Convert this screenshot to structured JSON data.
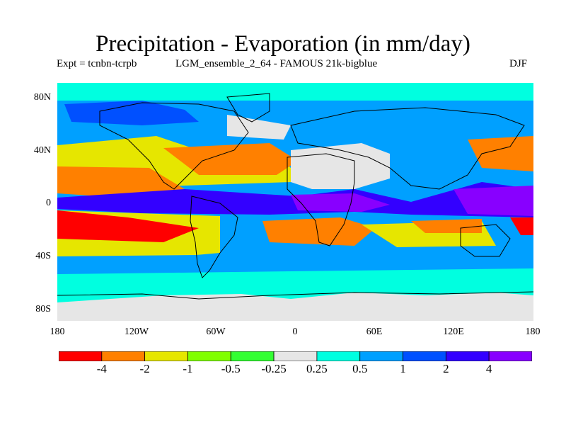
{
  "title": "Precipitation - Evaporation (in mm/day)",
  "expt_label": "Expt = tcnbn-tcrpb",
  "model_label": "LGM_ensemble_2_64 - FAMOUS 21k-bigblue",
  "season": "DJF",
  "lat_ticks": [
    "80N",
    "40N",
    "0",
    "40S",
    "80S"
  ],
  "lon_ticks": [
    "180",
    "120W",
    "60W",
    "0",
    "60E",
    "120E",
    "180"
  ],
  "colorbar": {
    "colors": [
      "#ff0000",
      "#ff8000",
      "#e6e600",
      "#80ff00",
      "#33ff33",
      "#e6e6e6",
      "#00ffe0",
      "#00a0ff",
      "#0050ff",
      "#3300ff",
      "#8800ff"
    ],
    "labels": [
      "-4",
      "-2",
      "-1",
      "-0.5",
      "-0.25",
      "0.25",
      "0.5",
      "1",
      "2",
      "4"
    ]
  }
}
